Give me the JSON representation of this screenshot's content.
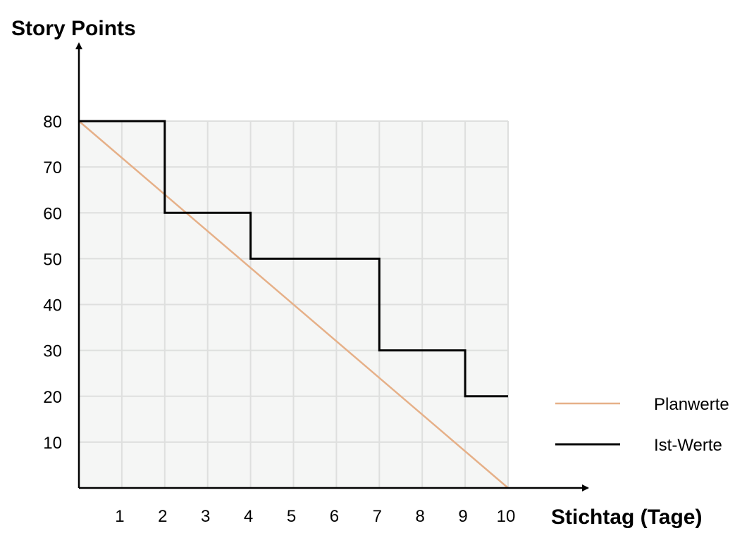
{
  "chart_data": {
    "type": "line",
    "ylabel": "Story Points",
    "xlabel": "Stichtag (Tage)",
    "xlim": [
      0,
      10
    ],
    "ylim": [
      0,
      80
    ],
    "xticks": [
      "1",
      "2",
      "3",
      "4",
      "5",
      "6",
      "7",
      "8",
      "9",
      "10"
    ],
    "yticks": [
      "10",
      "20",
      "30",
      "40",
      "50",
      "60",
      "70",
      "80"
    ],
    "grid": true,
    "legend_position": "right",
    "series": [
      {
        "name": "Planwerte",
        "color": "#e6b088",
        "step": false,
        "x": [
          0,
          10
        ],
        "y": [
          80,
          0
        ]
      },
      {
        "name": "Ist-Werte",
        "color": "#000000",
        "step": true,
        "x": [
          0,
          2,
          2,
          4,
          4,
          7,
          7,
          9,
          9,
          10
        ],
        "y": [
          80,
          80,
          60,
          60,
          50,
          50,
          30,
          30,
          20,
          20
        ]
      }
    ]
  }
}
